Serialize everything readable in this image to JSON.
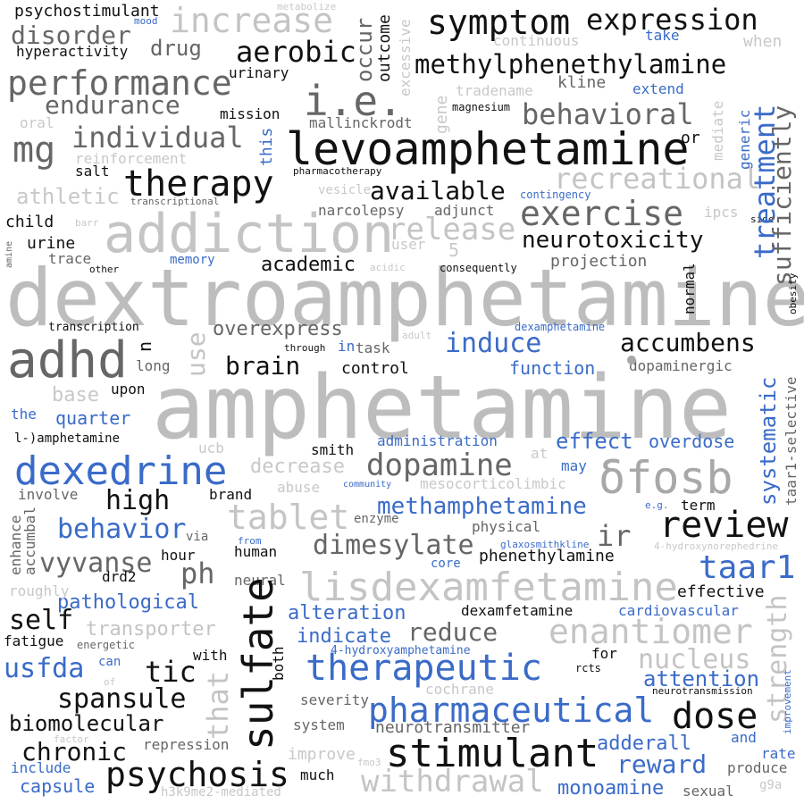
{
  "colors": {
    "black": "#111111",
    "dark_gray": "#666666",
    "gray": "#a8a8a8",
    "light_gray": "#c8c8c8",
    "blue": "#3a6bc8"
  },
  "words": {
    "dextroamphetamine": "dextroamphetamine",
    "amphetamine": "amphetamine",
    "addiction": "addiction",
    "levoamphetamine": "levoamphetamine",
    "dexedrine": "dexedrine",
    "adhd": "adhd",
    "fosb": "δfosb",
    "lisdexamfetamine": "lisdexamfetamine",
    "symptom": "symptom",
    "expression": "expression",
    "methylphenethylamine": "methylphenethylamine",
    "increase": "increase",
    "performance": "performance",
    "ie": "i.e.",
    "therapy": "therapy",
    "exercise": "exercise",
    "therapeutic": "therapeutic",
    "stimulant": "stimulant",
    "pharmaceutical": "pharmaceutical",
    "sulfate": "sulfate",
    "review": "review",
    "dose": "dose",
    "psychosis": "psychosis",
    "tablet": "tablet",
    "dopamine": "dopamine",
    "enantiomer": "enantiomer",
    "taar1": "taar1",
    "treatment": "treatment",
    "withdrawal": "withdrawal",
    "mg": "mg",
    "aerobic": "aerobic",
    "individual": "individual",
    "behavioral": "behavioral",
    "recreational": "recreational",
    "release": "release",
    "neurotoxicity": "neurotoxicity",
    "available": "available",
    "endurance": "endurance",
    "disorder": "disorder",
    "accumbens": "accumbens",
    "induce": "induce",
    "brain": "brain",
    "dimesylate": "dimesylate",
    "vyvanse": "vyvanse",
    "methamphetamine": "methamphetamine",
    "behavior": "behavior",
    "high": "high",
    "self": "self",
    "tic": "tic",
    "spansule": "spansule",
    "usfda": "usfda",
    "reduce": "reduce",
    "nucleus": "nucleus",
    "attention": "attention",
    "reward": "reward",
    "chronic": "chronic",
    "biomolecular": "biomolecular",
    "strength": "strength",
    "systematic": "systematic",
    "sufficiently": "sufficiently",
    "athletic": "athletic",
    "overexpress": "overexpress",
    "academic": "academic",
    "function": "function",
    "effect": "effect",
    "overdose": "overdose",
    "pathological": "pathological",
    "transporter": "transporter",
    "indicate": "indicate",
    "alteration": "alteration",
    "adderall": "adderall",
    "monoamine": "monoamine",
    "capsule": "capsule",
    "include": "include",
    "ph": "ph",
    "ir": "ir",
    "drug": "drug",
    "psychostimulant": "psychostimulant",
    "hyperactivity": "hyperactivity",
    "mood": "mood",
    "metabolize": "metabolize",
    "occur": "occur",
    "outcome": "outcome",
    "excessive": "excessive",
    "continuous": "continuous",
    "take": "take",
    "when": "when",
    "urinary": "urinary",
    "gene": "gene",
    "tradename": "tradename",
    "kline": "kline",
    "extend": "extend",
    "mission": "mission",
    "magnesium": "magnesium",
    "mediate": "mediate",
    "generic": "generic",
    "oral": "oral",
    "mallinckrodt": "mallinckrodt",
    "or": "or",
    "reinforcement": "reinforcement",
    "this": "this",
    "salt": "salt",
    "pharmacotherapy": "pharmacotherapy",
    "vesicle": "vesicle",
    "transcriptional": "transcriptional",
    "contingency": "contingency",
    "child": "child",
    "barr": "barr",
    "narcolepsy": "narcolepsy",
    "adjunct": "adjunct",
    "ipcs": "ipcs",
    "side": "side",
    "urine": "urine",
    "user": "user",
    "5": "5",
    "amine": "amine",
    "trace": "trace",
    "memory": "memory",
    "projection": "projection",
    "other": "other",
    "acidic": "acidic",
    "consequently": "consequently",
    "normal": "normal",
    "obesity": "obesity",
    "transcription": "transcription",
    "n": "n",
    "adult": "adult",
    "dexamphetamine": "dexamphetamine",
    "use": "use",
    "through": "through",
    "in": "in",
    "task": "task",
    "long": "long",
    "control": "control",
    "dopaminergic": "dopaminergic",
    "taar1selective": "taar1-selective",
    "base": "base",
    "upon": "upon",
    "the": "the",
    "quarter": "quarter",
    "lamphetamine": "l-)amphetamine",
    "ucb": "ucb",
    "administration": "administration",
    "smith": "smith",
    "at": "at",
    "decrease": "decrease",
    "may": "may",
    "involve": "involve",
    "abuse": "abuse",
    "community": "community",
    "mesocorticolimbic": "mesocorticolimbic",
    "brand": "brand",
    "eg": "e.g.",
    "term": "term",
    "enzyme": "enzyme",
    "physical": "physical",
    "enhance": "enhance",
    "accumbal": "accumbal",
    "via": "via",
    "from": "from",
    "glaxosmithkline": "glaxosmithkline",
    "hydroxynorephedrine": "4-hydroxynorephedrine",
    "human": "human",
    "core": "core",
    "phenethylamine": "phenethylamine",
    "drd2": "drd2",
    "hour": "hour",
    "neural": "neural",
    "roughly": "roughly",
    "effective": "effective",
    "dexamfetamine": "dexamfetamine",
    "cardiovascular": "cardiovascular",
    "that": "that",
    "energetic": "energetic",
    "fatigue": "fatigue",
    "with": "with",
    "both": "both",
    "hydroxyamphetamine": "4-hydroxyamphetamine",
    "for": "for",
    "can": "can",
    "of": "of",
    "rcts": "rcts",
    "cochrane": "cochrane",
    "neurotransmission": "neurotransmission",
    "severity": "severity",
    "improvement": "improvement",
    "system": "system",
    "neurotransmitter": "neurotransmitter",
    "factor": "factor",
    "repression": "repression",
    "and": "and",
    "improve": "improve",
    "rate": "rate",
    "much": "much",
    "produce": "produce",
    "fmo3": "fmo3",
    "h3k9me2": "h3k9me2-mediated",
    "sexual": "sexual",
    "g9a": "g9a"
  }
}
